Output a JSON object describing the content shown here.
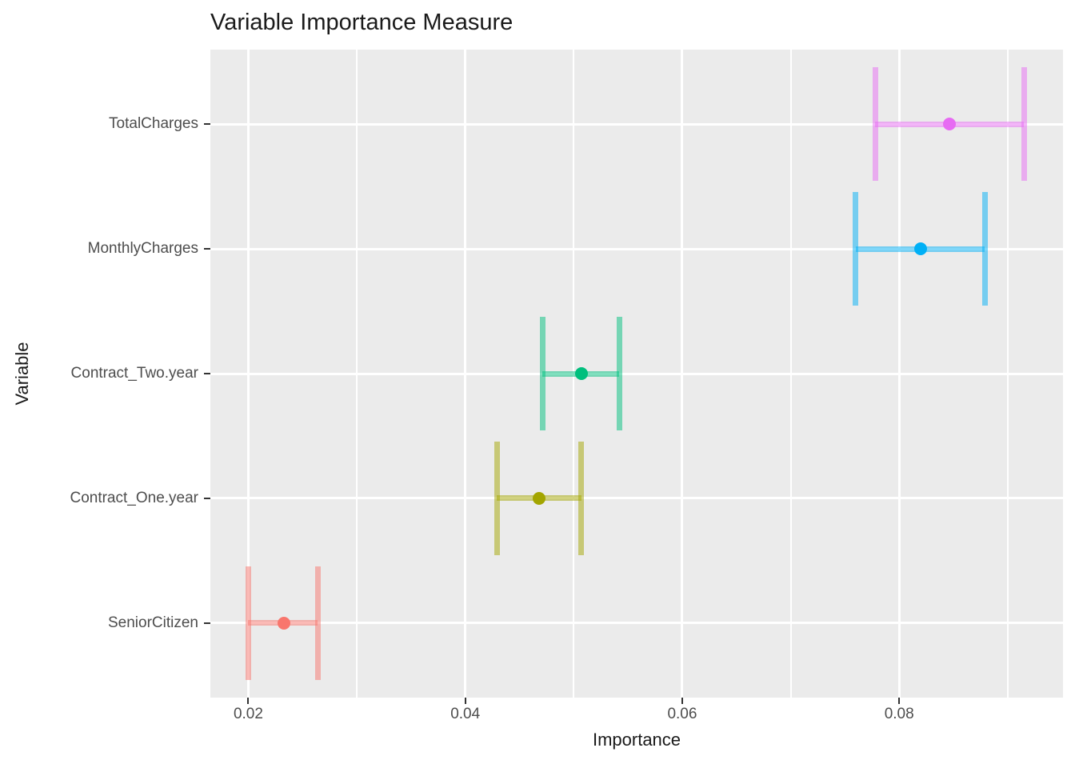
{
  "figure": {
    "background_color": "#FFFFFF",
    "panel_background_color": "#EBEBEB",
    "gridline_color": "#FFFFFF",
    "tick_mark_color": "#333333",
    "tick_label_color": "#4D4D4D",
    "title_color": "#1A1A1A"
  },
  "chart_data": {
    "type": "scatter",
    "subtype": "horizontal-errorbar-dotplot",
    "title": "Variable Importance Measure",
    "xlabel": "Importance",
    "ylabel": "Variable",
    "xlim": [
      0.0165,
      0.0951
    ],
    "x_major_ticks": [
      0.02,
      0.04,
      0.06,
      0.08
    ],
    "x_tick_labels": [
      "0.02",
      "0.04",
      "0.06",
      "0.08"
    ],
    "x_minor_gridlines": [
      0.03,
      0.05,
      0.07,
      0.09
    ],
    "grid": true,
    "legend_position": "none",
    "categories": [
      "TotalCharges",
      "MonthlyCharges",
      "Contract_Two.year",
      "Contract_One.year",
      "SeniorCitizen"
    ],
    "series": [
      {
        "name": "TotalCharges",
        "importance": 0.0846,
        "lower": 0.0778,
        "upper": 0.0915,
        "color": "#E76BF3"
      },
      {
        "name": "MonthlyCharges",
        "importance": 0.082,
        "lower": 0.076,
        "upper": 0.0879,
        "color": "#00B0F6"
      },
      {
        "name": "Contract_Two.year",
        "importance": 0.0507,
        "lower": 0.0471,
        "upper": 0.0542,
        "color": "#00BF7D"
      },
      {
        "name": "Contract_One.year",
        "importance": 0.0468,
        "lower": 0.0429,
        "upper": 0.0507,
        "color": "#A3A500"
      },
      {
        "name": "SeniorCitizen",
        "importance": 0.0233,
        "lower": 0.02,
        "upper": 0.0264,
        "color": "#F8766D"
      }
    ]
  }
}
